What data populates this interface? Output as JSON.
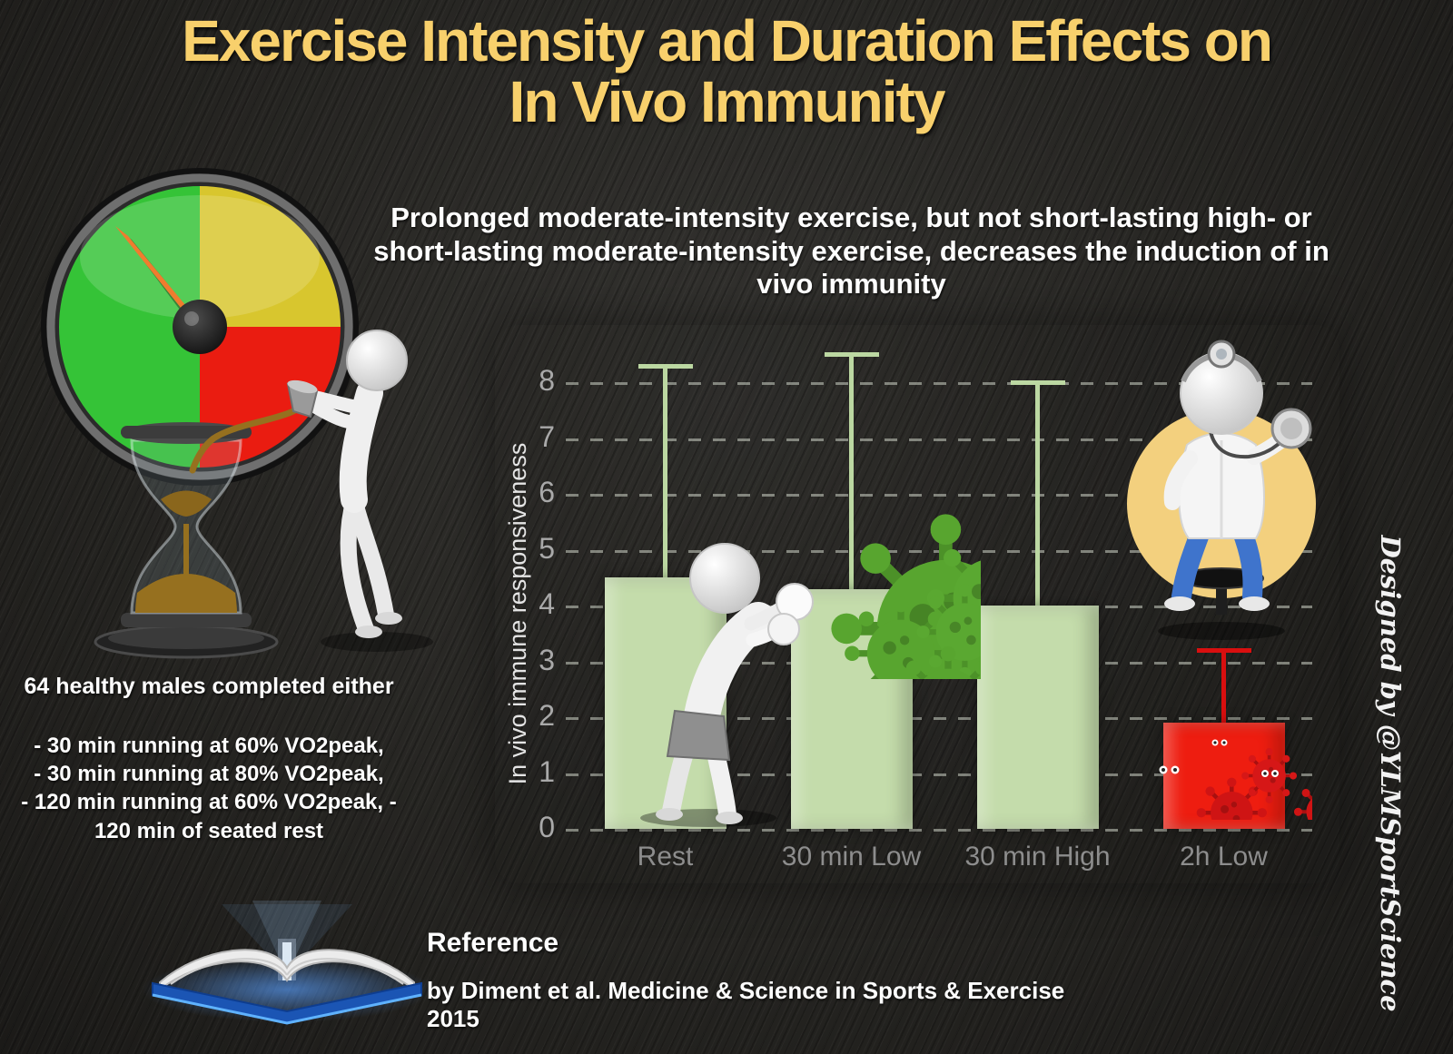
{
  "page": {
    "title_line1": "Exercise Intensity and Duration Effects on",
    "title_line2": "In Vivo Immunity",
    "subtitle": "Prolonged moderate-intensity exercise, but not short-lasting high- or short-lasting moderate-intensity exercise, decreases the induction of in vivo immunity",
    "credit": "Designed by @YLMSportScience"
  },
  "study": {
    "intro": "64 healthy males completed either",
    "protocols": [
      "- 30 min running at 60% VO2peak,",
      "- 30 min running at 80% VO2peak,",
      "- 120 min running at 60% VO2peak, -",
      "120 min of seated rest"
    ]
  },
  "reference": {
    "heading": "Reference",
    "citation": "by Diment et al. Medicine & Science in Sports & Exercise 2015"
  },
  "chart_data": {
    "type": "bar",
    "title": "",
    "xlabel": "",
    "ylabel": "In vivo immune responsiveness",
    "categories": [
      "Rest",
      "30 min Low",
      "30 min High",
      "2h Low"
    ],
    "values": [
      4.5,
      4.3,
      4.0,
      1.9
    ],
    "error_upper": [
      8.3,
      8.5,
      8.0,
      3.2
    ],
    "ylim": [
      0,
      8.6
    ],
    "yticks": [
      0,
      1,
      2,
      3,
      4,
      5,
      6,
      7,
      8
    ],
    "bar_colors": [
      "#c4dcab",
      "#c4dcab",
      "#c4dcab",
      "#ee1d10"
    ],
    "error_colors": [
      "#bcd8a2",
      "#bcd8a2",
      "#bcd8a2",
      "#d90f0f"
    ],
    "grid": "dashed-horizontal",
    "legend": "none"
  },
  "colors": {
    "background": "#262522",
    "title_gold": "#f8d06c",
    "bar_green": "#c4dcab",
    "bar_red": "#ee1d10",
    "virus_green": "#58a52f",
    "virus_red": "#cf1414",
    "gauge_green": "#35c337",
    "gauge_yellow": "#d8c62e",
    "gauge_red": "#ea1c11",
    "doctor_circle_yellow": "#f3d07e",
    "book_cover_blue": "#1b55b4"
  },
  "icons": {
    "speedometer-icon": "svg-gauge",
    "hourglass-icon": "svg-hourglass",
    "pouring-figure-icon": "svg-figure",
    "boxer-figure-icon": "svg-figure",
    "virus-icon": "svg-spiked-ball",
    "doctor-figure-icon": "svg-figure",
    "book-icon": "svg-open-book"
  }
}
